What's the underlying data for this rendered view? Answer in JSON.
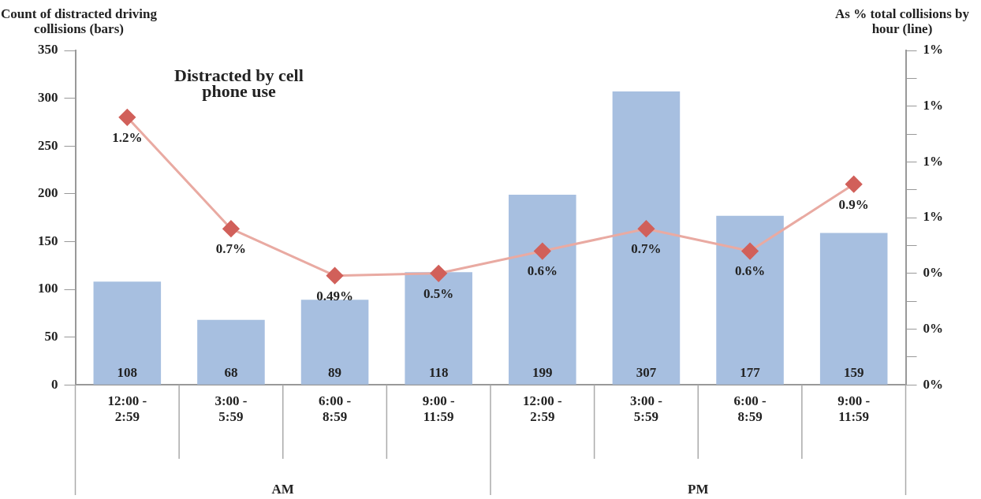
{
  "chart_data": {
    "type": "bar",
    "title": "Distracted by cell phone use",
    "ylabel": "Count of distracted driving collisions (bars)",
    "y2label": "As % total collisions by hour (line)",
    "categories": [
      "12:00 - 2:59",
      "3:00 - 5:59",
      "6:00 - 8:59",
      "9:00 - 11:59",
      "12:00 - 2:59",
      "3:00 - 5:59",
      "6:00 - 8:59",
      "9:00 - 11:59"
    ],
    "series": [
      {
        "color": "#a7bfe0",
        "values": [
          108,
          68,
          89,
          118,
          199,
          307,
          177,
          159
        ]
      },
      {
        "type": "line",
        "axis": "y2",
        "color": "#d1605a",
        "values": [
          1.2,
          0.7,
          0.49,
          0.5,
          0.6,
          0.7,
          0.6,
          0.9
        ],
        "value_labels": [
          "1.2%",
          "0.7%",
          "0.49%",
          "0.5%",
          "0.6%",
          "0.7%",
          "0.6%",
          "0.9%"
        ]
      }
    ],
    "annotations": [
      "AM",
      "PM"
    ],
    "ylim": [
      0,
      350
    ],
    "yticks": [
      0,
      50,
      100,
      150,
      200,
      250,
      300,
      350
    ],
    "y2lim": [
      0,
      1.5
    ],
    "y2ticks": [
      {
        "value": 0,
        "label": "0%"
      },
      {
        "value": 0.125,
        "label": null
      },
      {
        "value": 0.25,
        "label": "0%"
      },
      {
        "value": 0.375,
        "label": null
      },
      {
        "value": 0.5,
        "label": "0%"
      },
      {
        "value": 0.625,
        "label": null
      },
      {
        "value": 0.75,
        "label": "1%"
      },
      {
        "value": 0.875,
        "label": null
      },
      {
        "value": 1,
        "label": "1%"
      },
      {
        "value": 1.125,
        "label": null
      },
      {
        "value": 1.25,
        "label": "1%"
      },
      {
        "value": 1.375,
        "label": null
      },
      {
        "value": 1.5,
        "label": "1%"
      }
    ],
    "data_labels": true,
    "marker": "diamond",
    "grid": false,
    "legend": false
  }
}
